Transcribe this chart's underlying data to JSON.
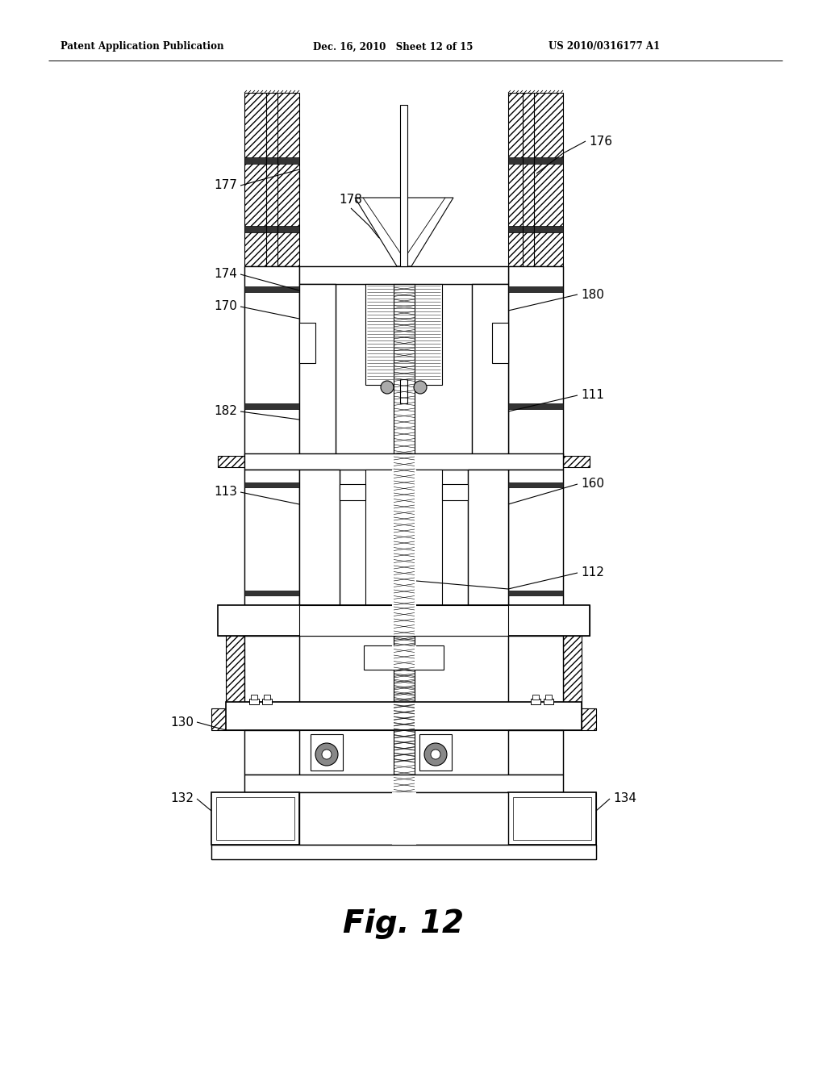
{
  "title_left": "Patent Application Publication",
  "title_mid": "Dec. 16, 2010   Sheet 12 of 15",
  "title_right": "US 2010/0316177 A1",
  "fig_label": "Fig. 12",
  "bg_color": "#ffffff"
}
